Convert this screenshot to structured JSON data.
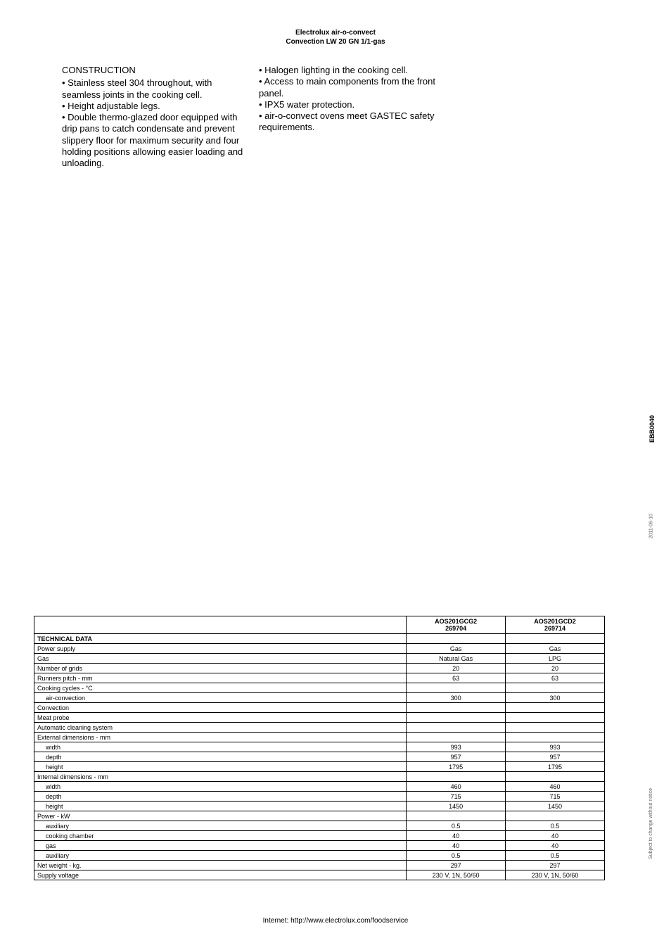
{
  "header": {
    "line1": "Electrolux air-o-convect",
    "line2": "Convection LW 20 GN 1/1-gas"
  },
  "column1": {
    "heading": " CONSTRUCTION",
    "items": [
      "• Stainless steel 304 throughout, with seamless joints in the cooking cell.",
      "• Height adjustable legs.",
      "• Double thermo-glazed door equipped with drip pans to catch condensate and prevent slippery floor for maximum security and four holding positions allowing easier loading and unloading."
    ]
  },
  "column2": {
    "items": [
      "• Halogen lighting in the cooking cell.",
      "• Access to main components from the front panel.",
      "• IPX5 water protection.",
      "• air-o-convect ovens meet GASTEC safety requirements."
    ]
  },
  "side": {
    "doc_code": "EBB0040",
    "date": "2011-06-10",
    "notice": "Subject to change without notice"
  },
  "table": {
    "models": [
      {
        "name": "AOS201GCG2",
        "code": "269704"
      },
      {
        "name": "AOS201GCD2",
        "code": "269714"
      }
    ],
    "section_label": "TECHNICAL DATA",
    "rows": [
      {
        "label": "Power supply",
        "indent": false,
        "v": [
          "Gas",
          "Gas"
        ]
      },
      {
        "label": "Gas",
        "indent": false,
        "v": [
          "Natural Gas",
          "LPG"
        ]
      },
      {
        "label": "Number of grids",
        "indent": false,
        "v": [
          "20",
          "20"
        ]
      },
      {
        "label": "Runners pitch - mm",
        "indent": false,
        "v": [
          "63",
          "63"
        ]
      },
      {
        "label": "Cooking cycles - °C",
        "indent": false,
        "v": [
          "",
          ""
        ]
      },
      {
        "label": "air-convection",
        "indent": true,
        "v": [
          "300",
          "300"
        ]
      },
      {
        "label": "Convection",
        "indent": false,
        "v": [
          "",
          ""
        ]
      },
      {
        "label": "Meat probe",
        "indent": false,
        "v": [
          "",
          ""
        ]
      },
      {
        "label": "Automatic cleaning system",
        "indent": false,
        "v": [
          "",
          ""
        ]
      },
      {
        "label": "External dimensions - mm",
        "indent": false,
        "v": [
          "",
          ""
        ]
      },
      {
        "label": "width",
        "indent": true,
        "v": [
          "993",
          "993"
        ]
      },
      {
        "label": "depth",
        "indent": true,
        "v": [
          "957",
          "957"
        ]
      },
      {
        "label": "height",
        "indent": true,
        "v": [
          "1795",
          "1795"
        ]
      },
      {
        "label": "Internal dimensions - mm",
        "indent": false,
        "v": [
          "",
          ""
        ]
      },
      {
        "label": "width",
        "indent": true,
        "v": [
          "460",
          "460"
        ]
      },
      {
        "label": "depth",
        "indent": true,
        "v": [
          "715",
          "715"
        ]
      },
      {
        "label": "height",
        "indent": true,
        "v": [
          "1450",
          "1450"
        ]
      },
      {
        "label": "Power - kW",
        "indent": false,
        "v": [
          "",
          ""
        ]
      },
      {
        "label": "auxiliary",
        "indent": true,
        "v": [
          "0.5",
          "0.5"
        ]
      },
      {
        "label": "cooking chamber",
        "indent": true,
        "v": [
          "40",
          "40"
        ]
      },
      {
        "label": "gas",
        "indent": true,
        "v": [
          "40",
          "40"
        ]
      },
      {
        "label": "auxiliary",
        "indent": true,
        "v": [
          "0.5",
          "0.5"
        ]
      },
      {
        "label": "Net weight - kg.",
        "indent": false,
        "v": [
          "297",
          "297"
        ]
      },
      {
        "label": "Supply voltage",
        "indent": false,
        "v": [
          "230 V, 1N, 50/60",
          "230 V, 1N, 50/60"
        ]
      }
    ]
  },
  "footer": "Internet: http://www.electrolux.com/foodservice"
}
